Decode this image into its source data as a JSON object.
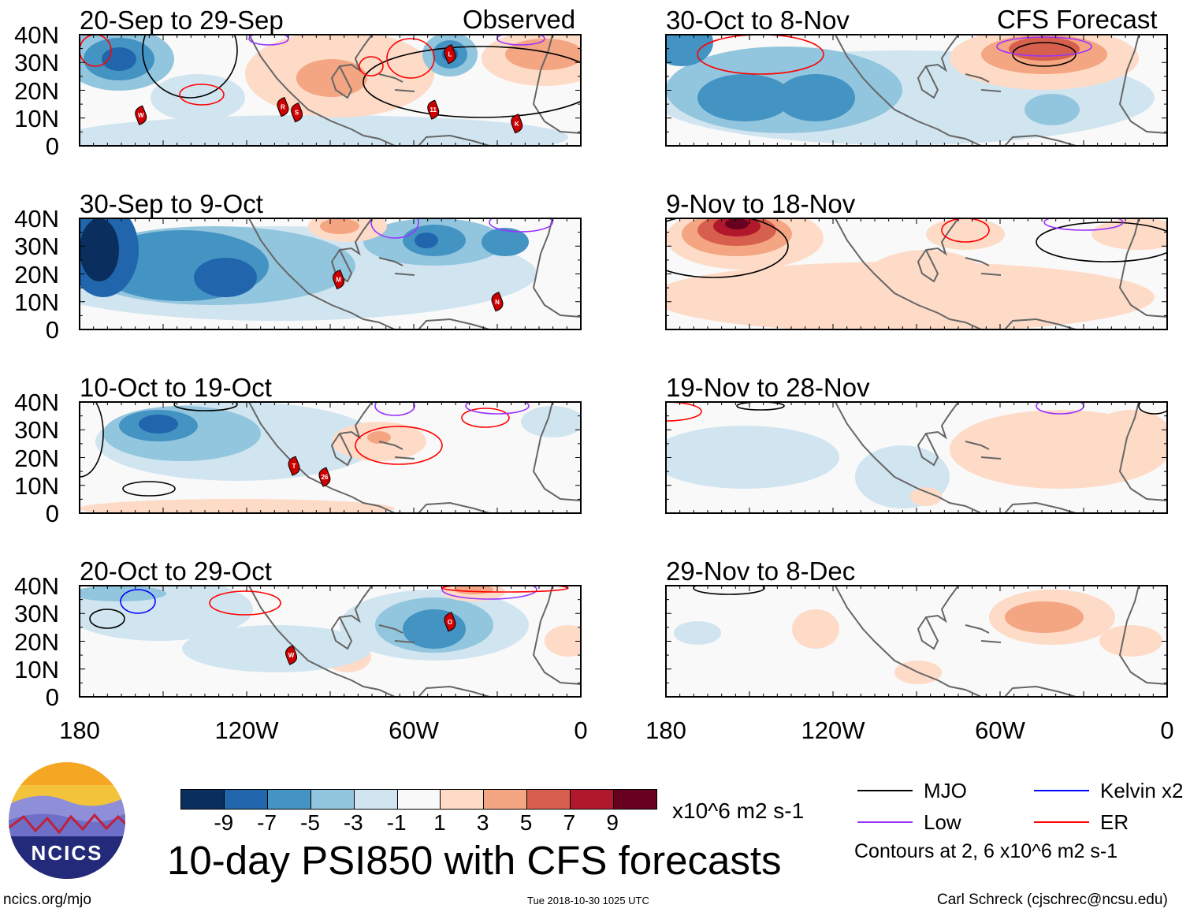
{
  "header": {
    "observed_label": "Observed",
    "forecast_label": "CFS Forecast"
  },
  "colors": {
    "levels": [
      "#0a2f5f",
      "#2166ac",
      "#4393c3",
      "#92c5de",
      "#d1e5f0",
      "#f9f9f9",
      "#fddbc7",
      "#f4a582",
      "#d6604d",
      "#b2182b",
      "#67001f"
    ],
    "mjo": "#000000",
    "kelvin": "#0000ff",
    "low": "#9933ff",
    "er": "#ff0000",
    "storm": "#cc0000"
  },
  "panels": [
    {
      "title": "20-Sep to 29-Sep",
      "storms": [
        {
          "label": "W",
          "lon": -158,
          "lat": 11
        },
        {
          "label": "R",
          "lon": -107,
          "lat": 14
        },
        {
          "label": "S",
          "lon": -102,
          "lat": 12
        },
        {
          "label": "11",
          "lon": -53,
          "lat": 13
        },
        {
          "label": "K",
          "lon": -23,
          "lat": 8
        },
        {
          "label": "L",
          "lon": -47,
          "lat": 33
        }
      ]
    },
    {
      "title": "30-Oct to 8-Nov",
      "storms": []
    },
    {
      "title": "30-Sep to 9-Oct",
      "storms": [
        {
          "label": "M",
          "lon": -87,
          "lat": 18
        },
        {
          "label": "N",
          "lon": -30,
          "lat": 10
        }
      ]
    },
    {
      "title": "9-Nov to 18-Nov",
      "storms": []
    },
    {
      "title": "10-Oct to 19-Oct",
      "storms": [
        {
          "label": "T",
          "lon": -103,
          "lat": 17
        },
        {
          "label": "26",
          "lon": -92,
          "lat": 13
        }
      ]
    },
    {
      "title": "19-Nov to 28-Nov",
      "storms": []
    },
    {
      "title": "20-Oct to 29-Oct",
      "storms": [
        {
          "label": "O",
          "lon": -47,
          "lat": 27
        },
        {
          "label": "W",
          "lon": -104,
          "lat": 15
        }
      ]
    },
    {
      "title": "29-Nov to 8-Dec",
      "storms": []
    }
  ],
  "lat_labels": [
    "40N",
    "30N",
    "20N",
    "10N",
    "0"
  ],
  "lon_labels": [
    "180",
    "120W",
    "60W",
    "0"
  ],
  "colorbar": {
    "ticks": [
      "-9",
      "-7",
      "-5",
      "-3",
      "-1",
      "1",
      "3",
      "5",
      "7",
      "9"
    ],
    "units": "x10^6 m2 s-1"
  },
  "main_title": "10-day PSI850 with CFS forecasts",
  "legend": {
    "items": [
      {
        "label": "MJO",
        "key": "mjo"
      },
      {
        "label": "Kelvin x2",
        "key": "kelvin"
      },
      {
        "label": "Low",
        "key": "low"
      },
      {
        "label": "ER",
        "key": "er"
      }
    ],
    "note": "Contours at 2, 6 x10^6 m2 s-1"
  },
  "logo_text": "NCICS",
  "footer": {
    "left": "ncics.org/mjo",
    "center": "Tue 2018-10-30 1025 UTC",
    "right": "Carl Schreck (cjschrec@ncsu.edu)"
  }
}
